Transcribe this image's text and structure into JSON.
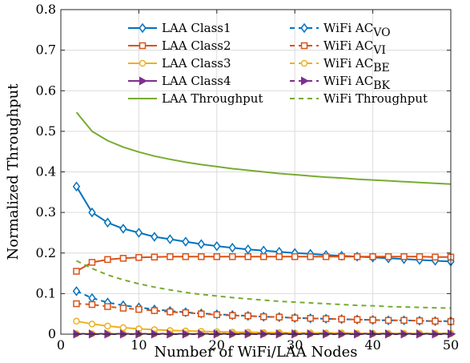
{
  "chart_data": {
    "type": "line",
    "xlabel": "Number of WiFi/LAA Nodes",
    "ylabel": "Normalized Throughput",
    "xlim": [
      0,
      50
    ],
    "ylim": [
      0,
      0.8
    ],
    "xticks": [
      "0",
      "10",
      "20",
      "30",
      "40",
      "50"
    ],
    "yticks": [
      "0",
      "0.1",
      "0.2",
      "0.3",
      "0.4",
      "0.5",
      "0.6",
      "0.7",
      "0.8"
    ],
    "grid": true,
    "legend_position": "top",
    "x": [
      2,
      4,
      6,
      8,
      10,
      12,
      14,
      16,
      18,
      20,
      22,
      24,
      26,
      28,
      30,
      32,
      34,
      36,
      38,
      40,
      42,
      44,
      46,
      48,
      50
    ],
    "series": [
      {
        "name": "LAA Class1",
        "color": "#0072BD",
        "style": "solid",
        "marker": "diamond",
        "values": [
          0.364,
          0.3,
          0.275,
          0.26,
          0.25,
          0.24,
          0.234,
          0.228,
          0.222,
          0.217,
          0.213,
          0.209,
          0.206,
          0.203,
          0.2,
          0.198,
          0.195,
          0.193,
          0.191,
          0.189,
          0.187,
          0.185,
          0.183,
          0.181,
          0.179
        ]
      },
      {
        "name": "LAA Class2",
        "color": "#D95319",
        "style": "solid",
        "marker": "square",
        "values": [
          0.155,
          0.177,
          0.184,
          0.187,
          0.189,
          0.19,
          0.191,
          0.191,
          0.191,
          0.191,
          0.191,
          0.191,
          0.191,
          0.191,
          0.191,
          0.191,
          0.191,
          0.191,
          0.191,
          0.191,
          0.191,
          0.191,
          0.191,
          0.19,
          0.19
        ]
      },
      {
        "name": "LAA Class3",
        "color": "#EDB120",
        "style": "solid",
        "marker": "circle",
        "values": [
          0.032,
          0.025,
          0.02,
          0.016,
          0.013,
          0.011,
          0.009,
          0.008,
          0.007,
          0.006,
          0.005,
          0.005,
          0.004,
          0.004,
          0.003,
          0.003,
          0.003,
          0.003,
          0.002,
          0.002,
          0.002,
          0.002,
          0.002,
          0.002,
          0.002
        ]
      },
      {
        "name": "LAA Class4",
        "color": "#7E2F8E",
        "style": "solid",
        "marker": "triangle-right",
        "values": [
          0.001,
          0.001,
          0.001,
          0.001,
          0.001,
          0.001,
          0.001,
          0.001,
          0.001,
          0.001,
          0.001,
          0.001,
          0.001,
          0.001,
          0.001,
          0.001,
          0.001,
          0.001,
          0.001,
          0.001,
          0.001,
          0.001,
          0.001,
          0.001,
          0.001
        ]
      },
      {
        "name": "LAA Throughput",
        "color": "#77AC30",
        "style": "solid",
        "marker": "none",
        "values": [
          0.547,
          0.5,
          0.477,
          0.461,
          0.449,
          0.439,
          0.431,
          0.424,
          0.418,
          0.413,
          0.408,
          0.404,
          0.4,
          0.396,
          0.393,
          0.39,
          0.387,
          0.385,
          0.382,
          0.38,
          0.378,
          0.376,
          0.374,
          0.372,
          0.37
        ]
      },
      {
        "name": "WiFi AC_VO",
        "label_main": "WiFi AC",
        "label_sub": "VO",
        "color": "#0072BD",
        "style": "dashed",
        "marker": "diamond",
        "values": [
          0.106,
          0.089,
          0.078,
          0.071,
          0.066,
          0.061,
          0.057,
          0.054,
          0.051,
          0.049,
          0.047,
          0.045,
          0.043,
          0.042,
          0.04,
          0.039,
          0.038,
          0.037,
          0.036,
          0.035,
          0.034,
          0.034,
          0.033,
          0.032,
          0.032
        ]
      },
      {
        "name": "WiFi AC_VI",
        "label_main": "WiFi AC",
        "label_sub": "VI",
        "color": "#D95319",
        "style": "dashed",
        "marker": "square",
        "values": [
          0.075,
          0.073,
          0.068,
          0.064,
          0.061,
          0.058,
          0.055,
          0.053,
          0.05,
          0.048,
          0.046,
          0.045,
          0.043,
          0.042,
          0.04,
          0.039,
          0.038,
          0.037,
          0.036,
          0.035,
          0.034,
          0.034,
          0.033,
          0.032,
          0.031
        ]
      },
      {
        "name": "WiFi AC_BE",
        "label_main": "WiFi AC",
        "label_sub": "BE",
        "color": "#EDB120",
        "style": "dashed",
        "marker": "circle",
        "values": [
          0.001,
          0.001,
          0.001,
          0.001,
          0.001,
          0.001,
          0.001,
          0.001,
          0.001,
          0.001,
          0.001,
          0.001,
          0.001,
          0.001,
          0.001,
          0.001,
          0.001,
          0.001,
          0.001,
          0.001,
          0.001,
          0.001,
          0.001,
          0.001,
          0.001
        ]
      },
      {
        "name": "WiFi AC_BK",
        "label_main": "WiFi AC",
        "label_sub": "BK",
        "color": "#7E2F8E",
        "style": "dashed",
        "marker": "triangle-right",
        "values": [
          0.0,
          0.0,
          0.0,
          0.0,
          0.0,
          0.0,
          0.0,
          0.0,
          0.0,
          0.0,
          0.0,
          0.0,
          0.0,
          0.0,
          0.0,
          0.0,
          0.0,
          0.0,
          0.0,
          0.0,
          0.0,
          0.0,
          0.0,
          0.0,
          0.0
        ]
      },
      {
        "name": "WiFi Throughput",
        "color": "#77AC30",
        "style": "dashed",
        "marker": "none",
        "values": [
          0.181,
          0.162,
          0.146,
          0.134,
          0.124,
          0.116,
          0.109,
          0.103,
          0.098,
          0.094,
          0.09,
          0.087,
          0.084,
          0.081,
          0.079,
          0.077,
          0.075,
          0.073,
          0.071,
          0.07,
          0.068,
          0.067,
          0.066,
          0.065,
          0.064
        ]
      }
    ]
  }
}
